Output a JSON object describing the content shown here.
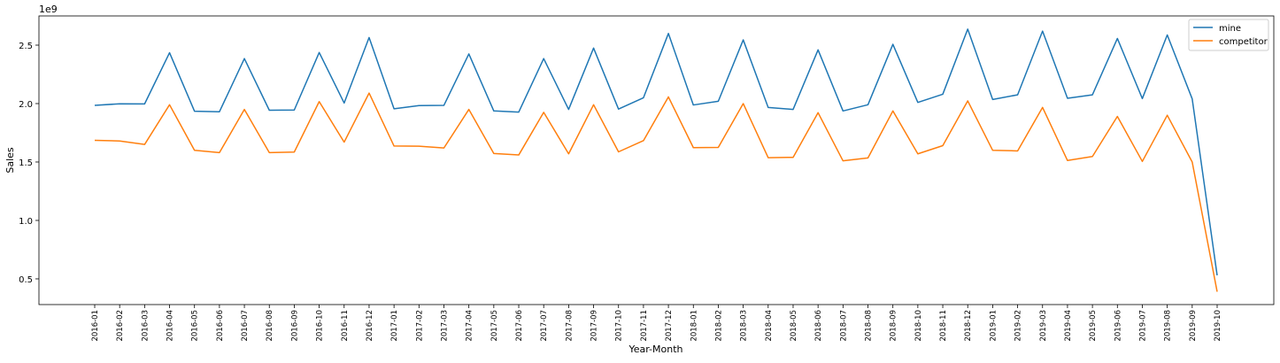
{
  "chart_data": {
    "type": "line",
    "title": "",
    "xlabel": "Year-Month",
    "ylabel": "Sales",
    "y_offset_text": "1e9",
    "ylim": [
      0.28,
      2.75
    ],
    "yticks": [
      0.5,
      1.0,
      1.5,
      2.0,
      2.5
    ],
    "ytick_labels": [
      "0.5",
      "1.0",
      "1.5",
      "2.0",
      "2.5"
    ],
    "grid": false,
    "legend_position": "top-right",
    "x": [
      "2016-01",
      "2016-02",
      "2016-03",
      "2016-04",
      "2016-05",
      "2016-06",
      "2016-07",
      "2016-08",
      "2016-09",
      "2016-10",
      "2016-11",
      "2016-12",
      "2017-01",
      "2017-02",
      "2017-03",
      "2017-04",
      "2017-05",
      "2017-06",
      "2017-07",
      "2017-08",
      "2017-09",
      "2017-10",
      "2017-11",
      "2017-12",
      "2018-01",
      "2018-02",
      "2018-03",
      "2018-04",
      "2018-05",
      "2018-06",
      "2018-07",
      "2018-08",
      "2018-09",
      "2018-10",
      "2018-11",
      "2018-12",
      "2019-01",
      "2019-02",
      "2019-03",
      "2019-04",
      "2019-05",
      "2019-06",
      "2019-07",
      "2019-08",
      "2019-09",
      "2019-10"
    ],
    "series": [
      {
        "name": "mine",
        "color": "#1f77b4",
        "values": [
          1.985,
          1.998,
          1.997,
          2.435,
          1.935,
          1.93,
          2.385,
          1.943,
          1.945,
          2.437,
          2.005,
          2.565,
          1.955,
          1.983,
          1.985,
          2.425,
          1.937,
          1.927,
          2.385,
          1.95,
          2.475,
          1.953,
          2.05,
          2.6,
          1.988,
          2.02,
          2.545,
          1.967,
          1.95,
          2.46,
          1.937,
          1.99,
          2.507,
          2.01,
          2.08,
          2.637,
          2.035,
          2.075,
          2.62,
          2.045,
          2.075,
          2.557,
          2.043,
          2.587,
          2.04,
          0.53
        ]
      },
      {
        "name": "competitor",
        "color": "#ff7f0e",
        "values": [
          1.685,
          1.68,
          1.65,
          1.99,
          1.6,
          1.58,
          1.95,
          1.58,
          1.585,
          2.017,
          1.67,
          2.09,
          1.637,
          1.635,
          1.62,
          1.95,
          1.573,
          1.56,
          1.925,
          1.57,
          1.99,
          1.587,
          1.683,
          2.057,
          1.623,
          1.625,
          2.0,
          1.537,
          1.54,
          1.922,
          1.51,
          1.535,
          1.937,
          1.57,
          1.64,
          2.023,
          1.6,
          1.595,
          1.967,
          1.513,
          1.547,
          1.89,
          1.505,
          1.9,
          1.5,
          0.39
        ]
      }
    ]
  }
}
